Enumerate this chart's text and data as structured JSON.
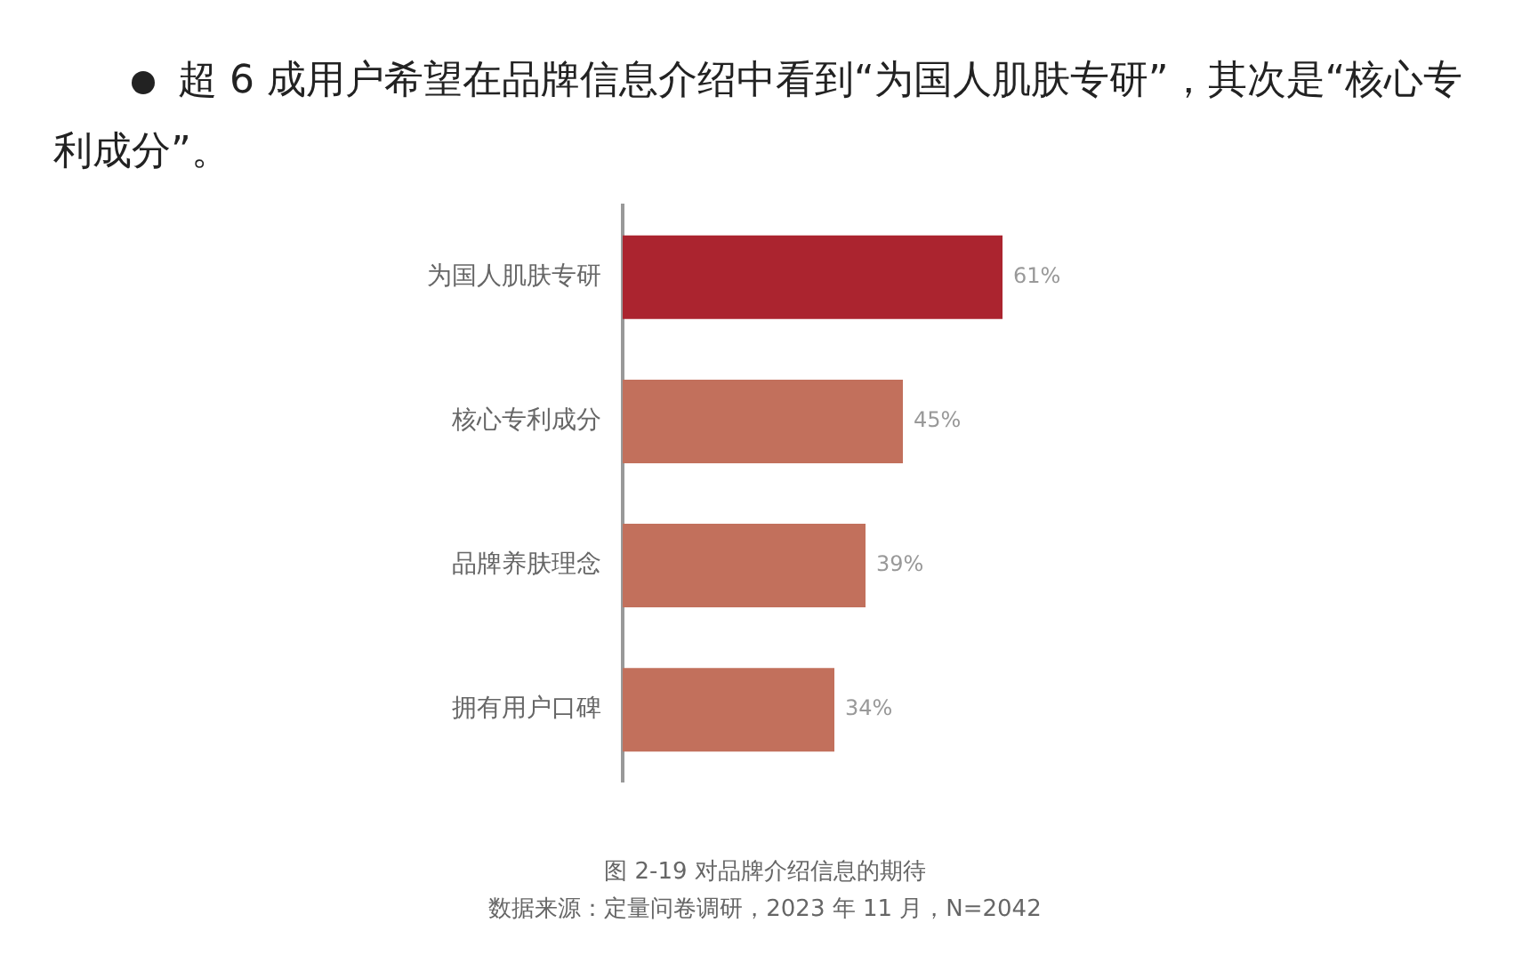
{
  "chart_data": {
    "type": "bar",
    "orientation": "horizontal",
    "title": "超 6 成用户希望在品牌信息介绍中看到“为国人肌肤专研”，其次是“核心专利成分”。",
    "categories": [
      "为国人肌肤专研",
      "核心专利成分",
      "品牌养肤理念",
      "拥有用户口碑"
    ],
    "values": [
      61,
      45,
      39,
      34
    ],
    "colors": [
      "#ab242f",
      "#c2705c",
      "#c2705c",
      "#c2705c"
    ],
    "value_labels": [
      "61%",
      "45%",
      "39%",
      "34%"
    ],
    "legend": false,
    "grid": false,
    "annotations": [
      "图 2-19  对品牌介绍信息的期待",
      "数据来源：定量问卷调研，2023 年 11 月，N=2042"
    ]
  }
}
